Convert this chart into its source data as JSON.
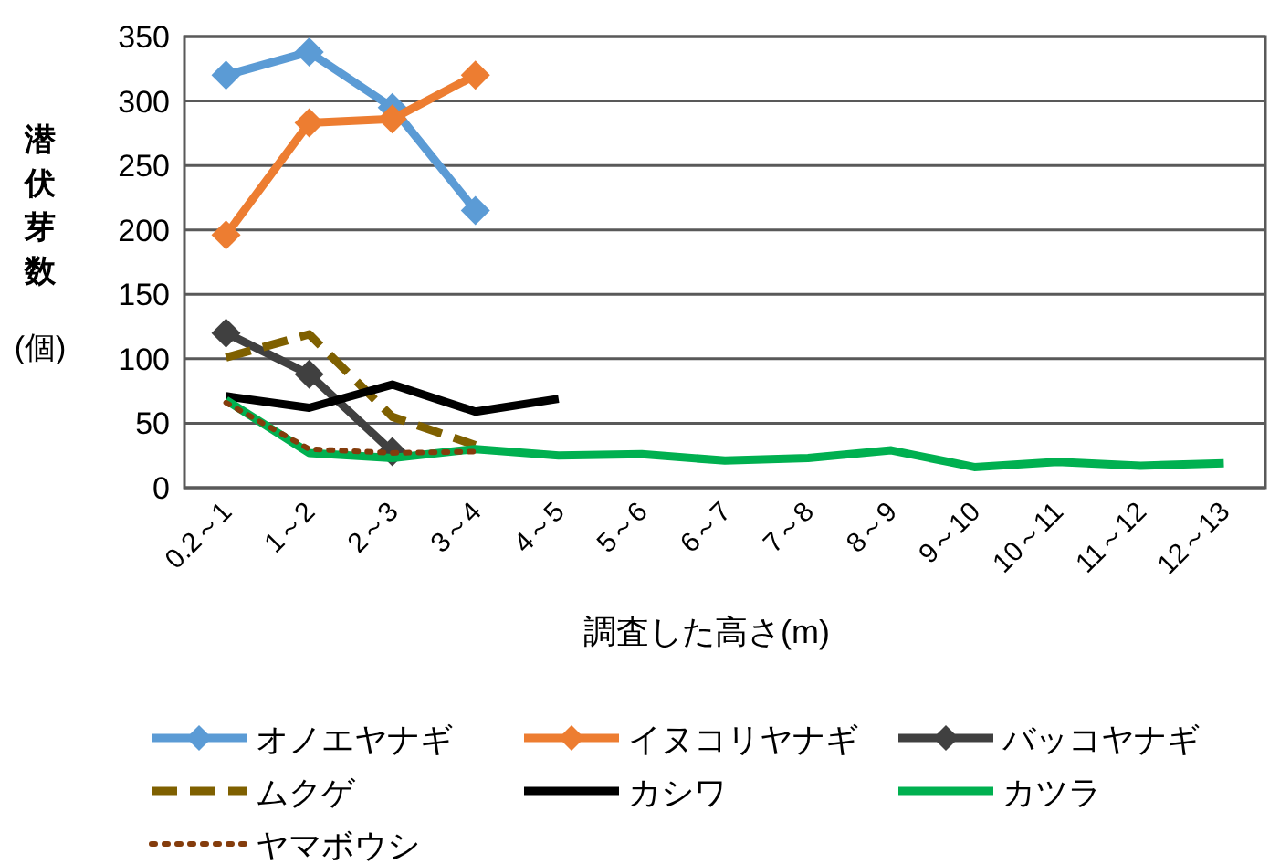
{
  "chart_data": {
    "type": "line",
    "categories": [
      "0.2～1",
      "1～2",
      "2～3",
      "3～4",
      "4～5",
      "5～6",
      "6～7",
      "7～8",
      "8～9",
      "9～10",
      "10～11",
      "11～12",
      "12～13"
    ],
    "xlabel": "調査した高さ(m)",
    "ylabel": "潜伏芽数(個)",
    "ylim": [
      0,
      350
    ],
    "yticks": [
      0,
      50,
      100,
      150,
      200,
      250,
      300,
      350
    ],
    "grid": "y",
    "legend": "bottom",
    "series": [
      {
        "name": "オノエヤナギ",
        "color": "#5b9bd5",
        "marker": "diamond",
        "line_style": "solid",
        "values": [
          320,
          338,
          295,
          215,
          null,
          null,
          null,
          null,
          null,
          null,
          null,
          null,
          null
        ]
      },
      {
        "name": "イヌコリヤナギ",
        "color": "#ed7d31",
        "marker": "diamond",
        "line_style": "solid",
        "values": [
          196,
          283,
          286,
          320,
          null,
          null,
          null,
          null,
          null,
          null,
          null,
          null,
          null
        ]
      },
      {
        "name": "バッコヤナギ",
        "color": "#404040",
        "marker": "diamond",
        "line_style": "solid",
        "values": [
          120,
          88,
          28,
          null,
          null,
          null,
          null,
          null,
          null,
          null,
          null,
          null,
          null
        ]
      },
      {
        "name": "ムクゲ",
        "color": "#7f6000",
        "marker": "none",
        "line_style": "dashed",
        "values": [
          101,
          119,
          55,
          33,
          null,
          null,
          null,
          null,
          null,
          null,
          null,
          null,
          null
        ]
      },
      {
        "name": "カシワ",
        "color": "#000000",
        "marker": "none",
        "line_style": "solid",
        "values": [
          71,
          62,
          80,
          59,
          69,
          null,
          null,
          null,
          null,
          null,
          null,
          null,
          null
        ]
      },
      {
        "name": "カツラ",
        "color": "#00b050",
        "marker": "none",
        "line_style": "solid",
        "values": [
          68,
          27,
          23,
          30,
          25,
          26,
          21,
          23,
          29,
          16,
          20,
          17,
          19
        ]
      },
      {
        "name": "ヤマボウシ",
        "color": "#843c0c",
        "marker": "none",
        "line_style": "dotted",
        "values": [
          66,
          30,
          27,
          28,
          null,
          null,
          null,
          null,
          null,
          null,
          null,
          null,
          null
        ]
      }
    ]
  }
}
